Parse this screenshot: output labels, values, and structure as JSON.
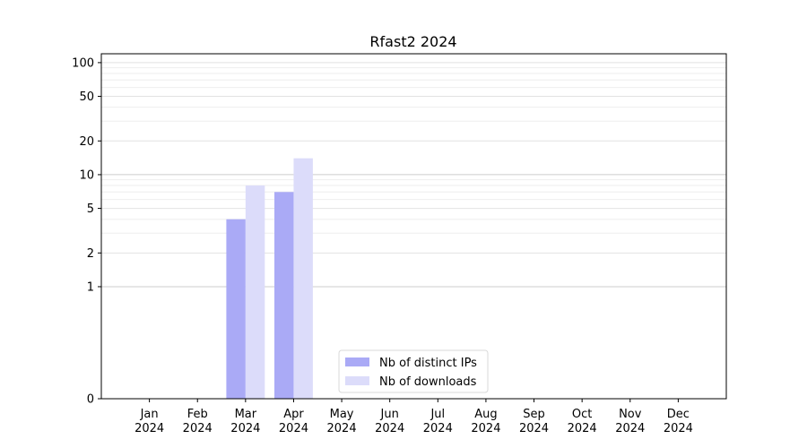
{
  "chart_data": {
    "type": "bar",
    "title": "Rfast2 2024",
    "xlabel": "",
    "ylabel": "",
    "y_scale": "symlog",
    "ylim": [
      0,
      120
    ],
    "yticks": [
      0,
      1,
      2,
      5,
      10,
      20,
      50,
      100
    ],
    "categories": [
      {
        "month": "Jan",
        "year": "2024"
      },
      {
        "month": "Feb",
        "year": "2024"
      },
      {
        "month": "Mar",
        "year": "2024"
      },
      {
        "month": "Apr",
        "year": "2024"
      },
      {
        "month": "May",
        "year": "2024"
      },
      {
        "month": "Jun",
        "year": "2024"
      },
      {
        "month": "Jul",
        "year": "2024"
      },
      {
        "month": "Aug",
        "year": "2024"
      },
      {
        "month": "Sep",
        "year": "2024"
      },
      {
        "month": "Oct",
        "year": "2024"
      },
      {
        "month": "Nov",
        "year": "2024"
      },
      {
        "month": "Dec",
        "year": "2024"
      }
    ],
    "series": [
      {
        "name": "Nb of distinct IPs",
        "color": "#aaaaf6",
        "values": [
          0,
          0,
          4,
          7,
          0,
          0,
          0,
          0,
          0,
          0,
          0,
          0
        ]
      },
      {
        "name": "Nb of downloads",
        "color": "#dcdcfa",
        "values": [
          0,
          0,
          8,
          14,
          0,
          0,
          0,
          0,
          0,
          0,
          0,
          0
        ]
      }
    ],
    "grid": true,
    "legend_position": "bottom-center"
  }
}
